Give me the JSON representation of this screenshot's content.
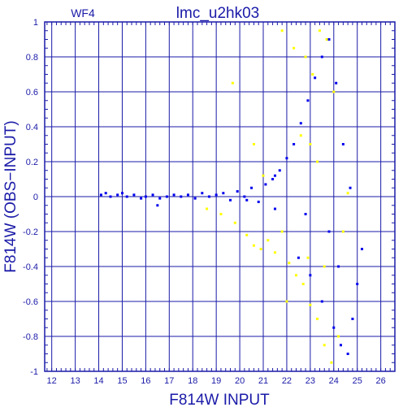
{
  "chart_data": {
    "type": "scatter",
    "title": "lmc_u2hk03",
    "corner_label": "WF4",
    "xlabel": "F814W INPUT",
    "ylabel": "F814W (OBS−INPUT)",
    "xlim": [
      11.7,
      26.6
    ],
    "ylim": [
      -1,
      1
    ],
    "x_ticks": [
      "12",
      "13",
      "14",
      "15",
      "16",
      "17",
      "18",
      "19",
      "20",
      "21",
      "22",
      "23",
      "24",
      "25",
      "26"
    ],
    "y_ticks": [
      "1",
      "0.8",
      "0.6",
      "0.4",
      "0.2",
      "0",
      "-0.2",
      "-0.4",
      "-0.6",
      "-0.8",
      "-1"
    ],
    "grid": true,
    "colors": {
      "axis": "#1a1aa8",
      "series_blue": "#0000ee",
      "series_yellow": "#ffff00"
    },
    "series": [
      {
        "color": "blue",
        "points": [
          [
            14.1,
            0.01
          ],
          [
            14.3,
            0.02
          ],
          [
            14.5,
            0.0
          ],
          [
            14.8,
            0.01
          ],
          [
            15.0,
            0.02
          ],
          [
            15.2,
            0.0
          ],
          [
            15.5,
            0.01
          ],
          [
            15.8,
            -0.01
          ],
          [
            16.0,
            0.0
          ],
          [
            16.3,
            0.01
          ],
          [
            16.6,
            -0.01
          ],
          [
            16.9,
            0.0
          ],
          [
            17.2,
            0.01
          ],
          [
            17.5,
            0.0
          ],
          [
            17.8,
            0.01
          ],
          [
            18.1,
            -0.01
          ],
          [
            18.4,
            0.02
          ],
          [
            18.7,
            0.0
          ],
          [
            19.0,
            0.01
          ],
          [
            19.3,
            0.02
          ],
          [
            19.6,
            -0.02
          ],
          [
            19.9,
            0.03
          ],
          [
            20.2,
            0.0
          ],
          [
            20.5,
            0.05
          ],
          [
            20.8,
            -0.03
          ],
          [
            21.1,
            0.07
          ],
          [
            21.4,
            0.1
          ],
          [
            21.7,
            0.15
          ],
          [
            22.0,
            0.22
          ],
          [
            22.3,
            0.3
          ],
          [
            22.6,
            0.42
          ],
          [
            22.9,
            0.55
          ],
          [
            23.2,
            0.68
          ],
          [
            23.5,
            0.8
          ],
          [
            23.8,
            0.9
          ],
          [
            24.1,
            0.65
          ],
          [
            24.4,
            0.3
          ],
          [
            24.7,
            0.05
          ],
          [
            22.5,
            -0.35
          ],
          [
            23.0,
            -0.45
          ],
          [
            23.5,
            -0.6
          ],
          [
            24.0,
            -0.75
          ],
          [
            24.3,
            -0.85
          ],
          [
            24.6,
            -0.9
          ],
          [
            24.8,
            -0.7
          ],
          [
            25.0,
            -0.5
          ],
          [
            25.2,
            -0.3
          ],
          [
            24.2,
            -0.4
          ],
          [
            23.8,
            -0.2
          ],
          [
            22.8,
            -0.1
          ],
          [
            16.5,
            -0.05
          ],
          [
            18.7,
            0.0
          ],
          [
            21.5,
            0.12
          ],
          [
            21.5,
            -0.07
          ],
          [
            20.3,
            -0.02
          ]
        ]
      },
      {
        "color": "yellow",
        "points": [
          [
            18.6,
            -0.07
          ],
          [
            19.2,
            -0.1
          ],
          [
            19.8,
            -0.15
          ],
          [
            20.3,
            -0.22
          ],
          [
            20.6,
            -0.28
          ],
          [
            20.9,
            -0.3
          ],
          [
            21.2,
            -0.25
          ],
          [
            21.5,
            -0.32
          ],
          [
            21.8,
            -0.2
          ],
          [
            22.1,
            -0.38
          ],
          [
            22.4,
            -0.45
          ],
          [
            22.7,
            -0.5
          ],
          [
            23.0,
            -0.62
          ],
          [
            23.3,
            -0.7
          ],
          [
            23.6,
            -0.85
          ],
          [
            23.9,
            -0.95
          ],
          [
            24.2,
            -0.8
          ],
          [
            21.8,
            0.95
          ],
          [
            22.3,
            0.85
          ],
          [
            22.8,
            0.8
          ],
          [
            23.1,
            0.7
          ],
          [
            23.4,
            0.95
          ],
          [
            23.7,
            0.9
          ],
          [
            24.0,
            0.6
          ],
          [
            22.6,
            0.35
          ],
          [
            23.0,
            0.3
          ],
          [
            23.3,
            0.2
          ],
          [
            20.6,
            0.3
          ],
          [
            21.0,
            0.12
          ],
          [
            19.7,
            0.65
          ],
          [
            22.0,
            -0.6
          ],
          [
            22.9,
            -0.35
          ],
          [
            23.6,
            -0.4
          ],
          [
            24.4,
            -0.2
          ],
          [
            24.6,
            0.02
          ]
        ]
      }
    ]
  }
}
